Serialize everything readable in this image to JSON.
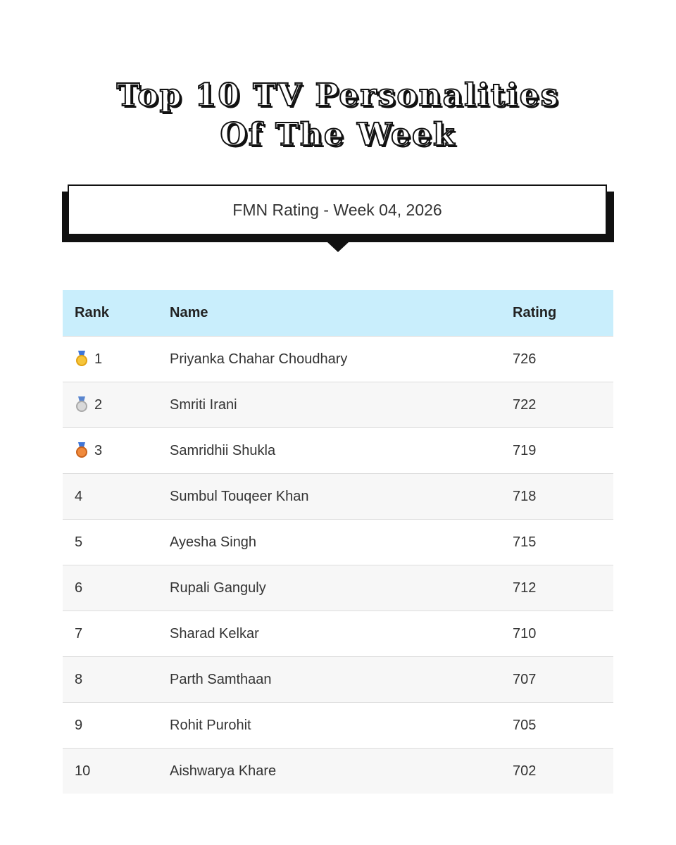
{
  "title": {
    "line1": "Top 10 TV Personalities",
    "line2": "Of The Week"
  },
  "banner": {
    "text": "FMN Rating - Week 04, 2026"
  },
  "table": {
    "headers": {
      "rank": "Rank",
      "name": "Name",
      "rating": "Rating"
    },
    "rows": [
      {
        "rank": "1",
        "medal": "gold-medal-icon",
        "name": "Priyanka Chahar Choudhary",
        "rating": "726"
      },
      {
        "rank": "2",
        "medal": "silver-medal-icon",
        "name": "Smriti Irani",
        "rating": "722"
      },
      {
        "rank": "3",
        "medal": "bronze-medal-icon",
        "name": "Samridhii Shukla",
        "rating": "719"
      },
      {
        "rank": "4",
        "name": "Sumbul Touqeer Khan",
        "rating": "718"
      },
      {
        "rank": "5",
        "name": "Ayesha Singh",
        "rating": "715"
      },
      {
        "rank": "6",
        "name": "Rupali Ganguly",
        "rating": "712"
      },
      {
        "rank": "7",
        "name": "Sharad Kelkar",
        "rating": "710"
      },
      {
        "rank": "8",
        "name": "Parth Samthaan",
        "rating": "707"
      },
      {
        "rank": "9",
        "name": "Rohit Purohit",
        "rating": "705"
      },
      {
        "rank": "10",
        "name": "Aishwarya Khare",
        "rating": "702"
      }
    ]
  },
  "colors": {
    "header_bg": "#c9eefc",
    "gold": "#f6c53a",
    "silver": "#d9d9d9",
    "bronze": "#f08a3c"
  }
}
